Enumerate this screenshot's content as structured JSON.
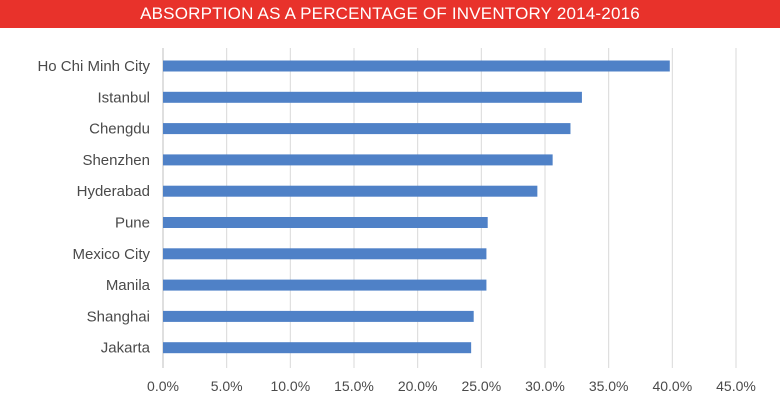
{
  "header": {
    "title": "ABSORPTION AS A PERCENTAGE OF INVENTORY 2014-2016",
    "background_color": "#e8322b"
  },
  "chart_data": {
    "type": "bar",
    "orientation": "horizontal",
    "title": "ABSORPTION AS A PERCENTAGE OF INVENTORY 2014-2016",
    "categories": [
      "Ho Chi Minh City",
      "Istanbul",
      "Chengdu",
      "Shenzhen",
      "Hyderabad",
      "Pune",
      "Mexico City",
      "Manila",
      "Shanghai",
      "Jakarta"
    ],
    "values": [
      39.8,
      32.9,
      32.0,
      30.6,
      29.4,
      25.5,
      25.4,
      25.4,
      24.4,
      24.2
    ],
    "xlim": [
      0,
      45
    ],
    "x_ticks": [
      "0.0%",
      "5.0%",
      "10.0%",
      "15.0%",
      "20.0%",
      "25.0%",
      "30.0%",
      "35.0%",
      "40.0%",
      "45.0%"
    ],
    "x_tick_values": [
      0,
      5,
      10,
      15,
      20,
      25,
      30,
      35,
      40,
      45
    ],
    "grid": "vertical",
    "legend": "none",
    "bar_color": "#4f81c7",
    "grid_color": "#d9d9d9"
  }
}
